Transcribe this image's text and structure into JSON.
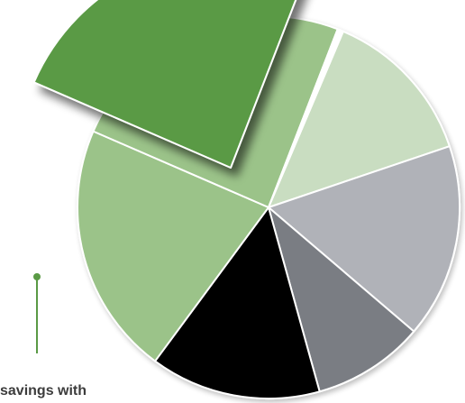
{
  "chart_data": {
    "type": "pie",
    "title": "",
    "slices": [
      {
        "value": 13.5,
        "color": "#c9ddc1",
        "exploded": false
      },
      {
        "value": 16.5,
        "color": "#b0b2b8",
        "exploded": false
      },
      {
        "value": 9.5,
        "color": "#7a7d83",
        "exploded": false
      },
      {
        "value": 14.5,
        "color": "#000000",
        "exploded": false
      },
      {
        "value": 21.5,
        "color": "#9bc389",
        "exploded": false
      },
      {
        "value": 24.5,
        "color": "#5a9a45",
        "exploded": true
      },
      {
        "value": 0.5,
        "color": "#ffffff",
        "exploded": false
      }
    ],
    "start_angle_deg": -67,
    "slice_border_color": "#ffffff",
    "accent_color": "#5a9a45",
    "callout_text": "savings with"
  }
}
